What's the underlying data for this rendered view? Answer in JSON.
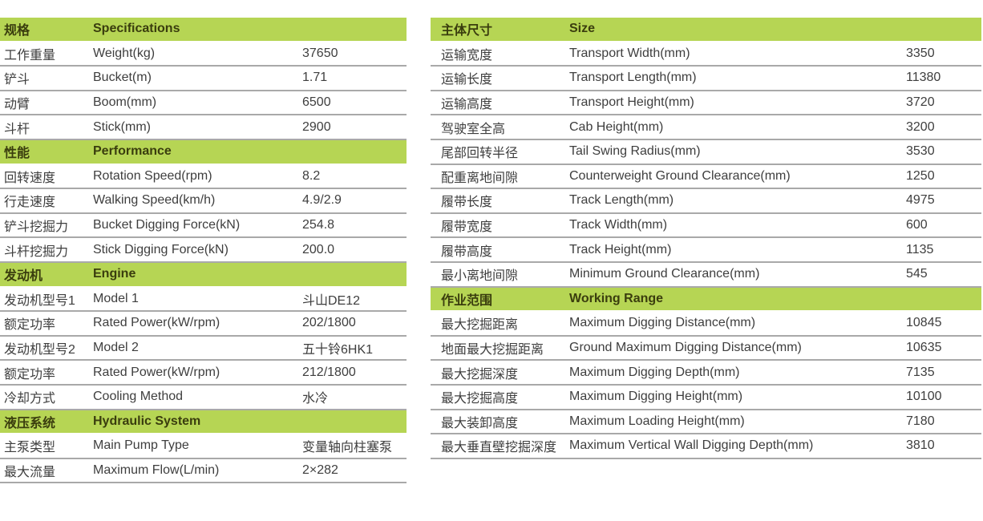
{
  "left_table": [
    {
      "type": "header",
      "cn": "规格",
      "en": "Specifications",
      "val": ""
    },
    {
      "type": "row",
      "cn": "工作重量",
      "en": "Weight(kg)",
      "val": "37650"
    },
    {
      "type": "row",
      "cn": "铲斗",
      "en": "Bucket(m)",
      "val": "1.71"
    },
    {
      "type": "row",
      "cn": "动臂",
      "en": "Boom(mm)",
      "val": "6500"
    },
    {
      "type": "row",
      "cn": "斗杆",
      "en": "Stick(mm)",
      "val": "2900"
    },
    {
      "type": "header",
      "cn": "性能",
      "en": "Performance",
      "val": ""
    },
    {
      "type": "row",
      "cn": "回转速度",
      "en": "Rotation Speed(rpm)",
      "val": "8.2"
    },
    {
      "type": "row",
      "cn": "行走速度",
      "en": "Walking Speed(km/h)",
      "val": "4.9/2.9"
    },
    {
      "type": "row",
      "cn": "铲斗挖掘力",
      "en": "Bucket Digging Force(kN)",
      "val": "254.8"
    },
    {
      "type": "row",
      "cn": "斗杆挖掘力",
      "en": "Stick Digging Force(kN)",
      "val": "200.0"
    },
    {
      "type": "header",
      "cn": "发动机",
      "en": "Engine",
      "val": ""
    },
    {
      "type": "row",
      "cn": "发动机型号1",
      "en": "Model 1",
      "val": "斗山DE12"
    },
    {
      "type": "row",
      "cn": "额定功率",
      "en": "Rated Power(kW/rpm)",
      "val": "202/1800"
    },
    {
      "type": "row",
      "cn": "发动机型号2",
      "en": "Model 2",
      "val": "五十铃6HK1"
    },
    {
      "type": "row",
      "cn": "额定功率",
      "en": "Rated Power(kW/rpm)",
      "val": "212/1800"
    },
    {
      "type": "row",
      "cn": "冷却方式",
      "en": "Cooling Method",
      "val": "水冷"
    },
    {
      "type": "header",
      "cn": "液压系统",
      "en": "Hydraulic System",
      "val": ""
    },
    {
      "type": "row",
      "cn": "主泵类型",
      "en": "Main Pump Type",
      "val": "变量轴向柱塞泵"
    },
    {
      "type": "row",
      "cn": "最大流量",
      "en": "Maximum Flow(L/min)",
      "val": "2×282"
    }
  ],
  "right_table": [
    {
      "type": "header",
      "cn": "主体尺寸",
      "en": "Size",
      "val": ""
    },
    {
      "type": "row",
      "cn": "运输宽度",
      "en": "Transport Width(mm)",
      "val": "3350"
    },
    {
      "type": "row",
      "cn": "运输长度",
      "en": "Transport Length(mm)",
      "val": "11380"
    },
    {
      "type": "row",
      "cn": "运输高度",
      "en": "Transport Height(mm)",
      "val": "3720"
    },
    {
      "type": "row",
      "cn": "驾驶室全高",
      "en": "Cab Height(mm)",
      "val": "3200"
    },
    {
      "type": "row",
      "cn": "尾部回转半径",
      "en": "Tail Swing Radius(mm)",
      "val": "3530"
    },
    {
      "type": "row",
      "cn": "配重离地间隙",
      "en": "Counterweight Ground Clearance(mm)",
      "val": "1250"
    },
    {
      "type": "row",
      "cn": "履带长度",
      "en": "Track Length(mm)",
      "val": "4975"
    },
    {
      "type": "row",
      "cn": "履带宽度",
      "en": "Track Width(mm)",
      "val": "600"
    },
    {
      "type": "row",
      "cn": "履带高度",
      "en": "Track Height(mm)",
      "val": "1135"
    },
    {
      "type": "row",
      "cn": "最小离地间隙",
      "en": "Minimum Ground Clearance(mm)",
      "val": "545"
    },
    {
      "type": "header",
      "cn": "作业范围",
      "en": "Working Range",
      "val": ""
    },
    {
      "type": "row",
      "cn": "最大挖掘距离",
      "en": "Maximum Digging Distance(mm)",
      "val": "10845"
    },
    {
      "type": "row",
      "cn": "地面最大挖掘距离",
      "en": "Ground Maximum Digging Distance(mm)",
      "val": "10635"
    },
    {
      "type": "row",
      "cn": "最大挖掘深度",
      "en": "Maximum Digging Depth(mm)",
      "val": "7135"
    },
    {
      "type": "row",
      "cn": "最大挖掘高度",
      "en": "Maximum Digging Height(mm)",
      "val": "10100"
    },
    {
      "type": "row",
      "cn": "最大装卸高度",
      "en": "Maximum Loading Height(mm)",
      "val": "7180"
    },
    {
      "type": "row",
      "cn": "最大垂直壁挖掘深度",
      "en": "Maximum Vertical Wall Digging Depth(mm)",
      "val": "3810"
    }
  ],
  "colors": {
    "header_bg": "#b6d554",
    "header_text": "#3a3d0e",
    "body_text": "#3e3e3e",
    "divider": "#a9a9a9"
  }
}
